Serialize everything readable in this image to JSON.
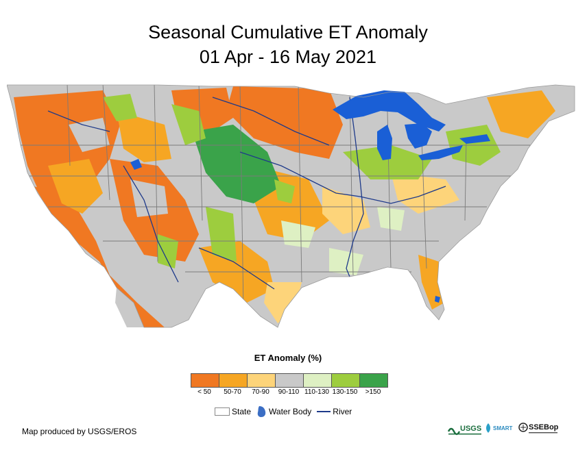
{
  "title": {
    "line1": "Seasonal Cumulative ET Anomaly",
    "line2": "01 Apr - 16 May 2021"
  },
  "legend": {
    "title": "ET Anomaly (%)",
    "classes": [
      {
        "label": "< 50",
        "color": "#f07822"
      },
      {
        "label": "50-70",
        "color": "#f6a623"
      },
      {
        "label": "70-90",
        "color": "#fdd47a"
      },
      {
        "label": "90-110",
        "color": "#c9c9c9"
      },
      {
        "label": "110-130",
        "color": "#def0c3"
      },
      {
        "label": "130-150",
        "color": "#9dcd3e"
      },
      {
        "label": ">150",
        "color": "#3aa34a"
      }
    ]
  },
  "map_key": {
    "state": "State",
    "water_body": "Water Body",
    "river": "River"
  },
  "colors": {
    "water": "#1a5fd6",
    "river": "#1e3a8a",
    "state_border": "#7a7a7a"
  },
  "credit": "Map produced by USGS/EROS",
  "logos": {
    "usgs": "USGS",
    "smart": "SMART",
    "ssebop": "SSEBop"
  }
}
